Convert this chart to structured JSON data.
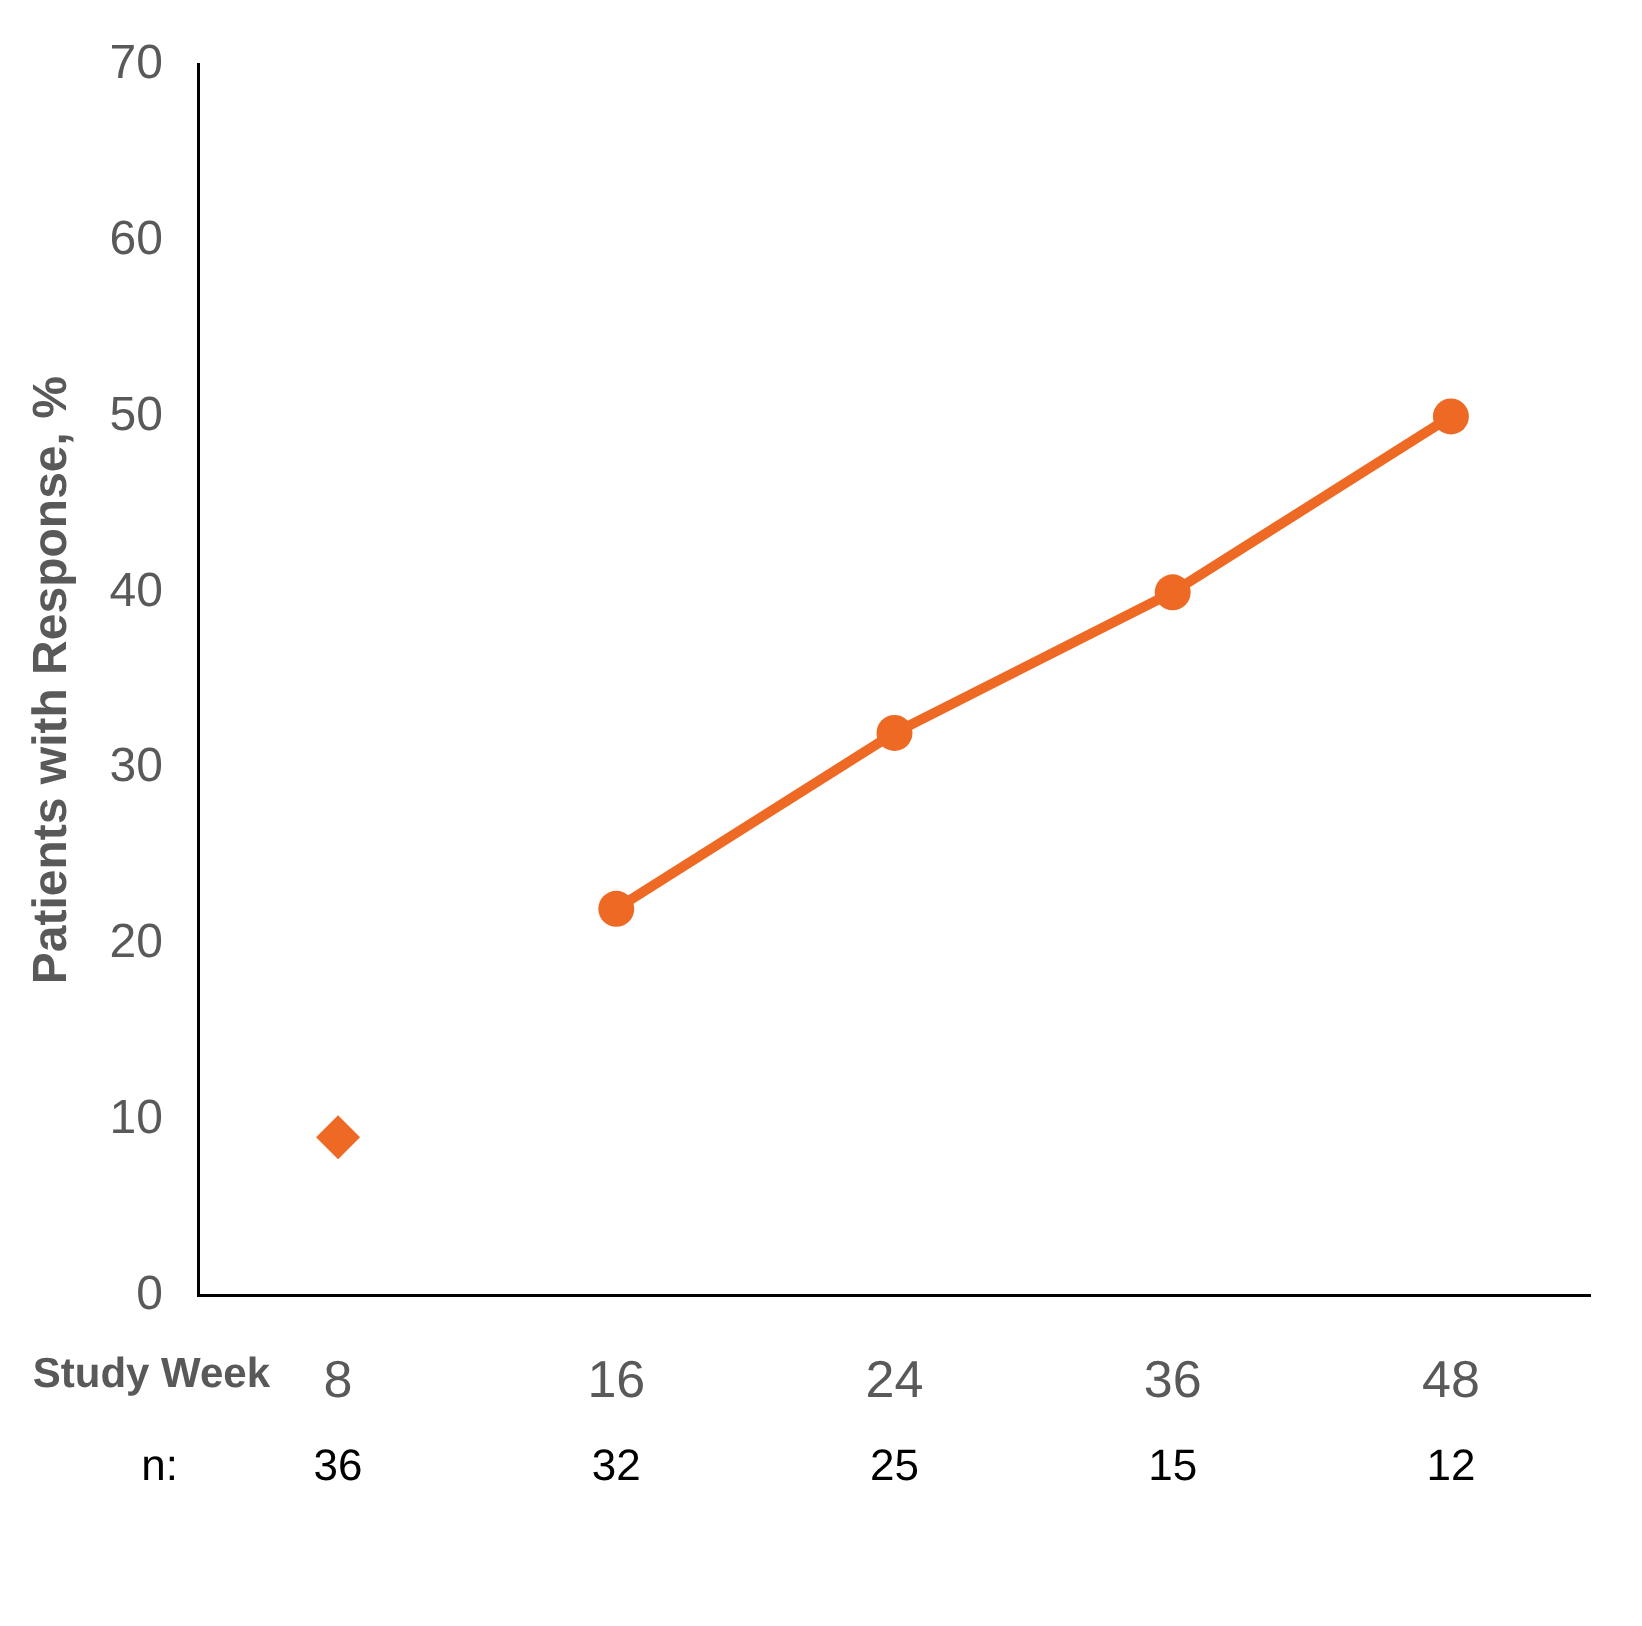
{
  "chart_data": {
    "type": "line",
    "xlabel": "Study Week",
    "ylabel": "Patients with Response, %",
    "categories": [
      "8",
      "16",
      "24",
      "36",
      "48"
    ],
    "series": [
      {
        "type": "scatter",
        "marker": "diamond",
        "color": "#ee6a24",
        "values": [
          9,
          null,
          null,
          null,
          null
        ]
      },
      {
        "type": "line",
        "marker": "circle",
        "line_style": "solid",
        "color": "#ee6a24",
        "values": [
          null,
          22,
          32,
          40,
          50
        ]
      }
    ],
    "ylim": [
      0,
      70
    ],
    "yticks": [
      0,
      10,
      20,
      30,
      40,
      50,
      60,
      70
    ],
    "grid": false,
    "legend": false,
    "annotations": [
      "n:",
      "36",
      "32",
      "25",
      "15",
      "12"
    ]
  }
}
